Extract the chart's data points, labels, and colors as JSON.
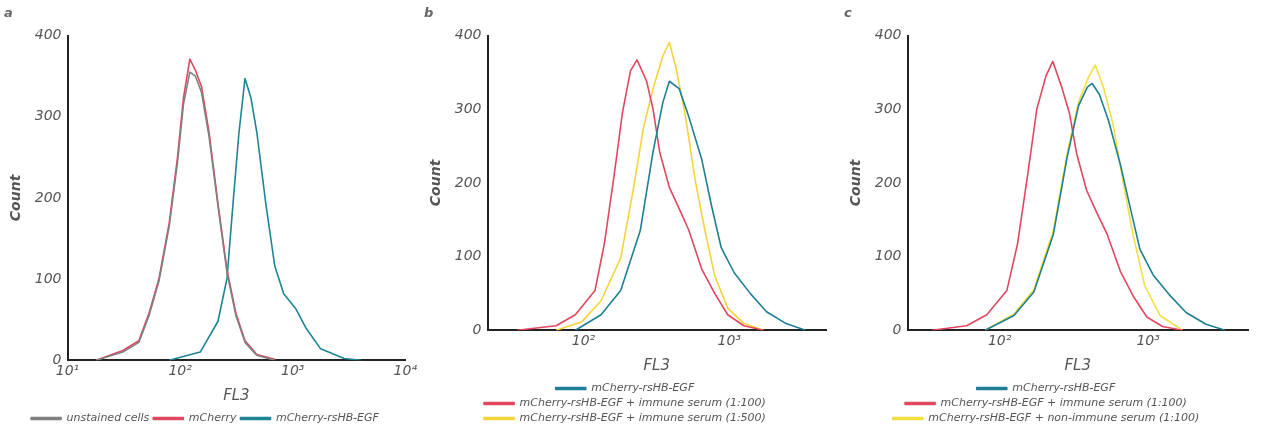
{
  "chart_data": [
    {
      "type": "line",
      "title": "a",
      "xlabel": "FL3",
      "ylabel": "Count",
      "log": "x",
      "xlim": [
        10,
        10000
      ],
      "xticks": [
        {
          "value": 10,
          "label": "10¹"
        },
        {
          "value": 100,
          "label": "10²"
        },
        {
          "value": 1000,
          "label": "10³"
        },
        {
          "value": 10000,
          "label": "10⁴"
        }
      ],
      "ylim": [
        0,
        400
      ],
      "yticks": [
        0,
        100,
        200,
        300,
        400
      ],
      "grid": false,
      "legend": "bottom",
      "marker": "none",
      "series": [
        {
          "name": "unstained cells",
          "color": "#808080",
          "x": [
            18,
            31,
            43,
            53,
            65,
            80,
            95,
            107,
            122,
            137,
            155,
            181,
            217,
            261,
            313,
            377,
            480,
            693
          ],
          "values": [
            0,
            10,
            22,
            55,
            98,
            165,
            245,
            315,
            355,
            350,
            330,
            275,
            190,
            108,
            55,
            22,
            6,
            0
          ]
        },
        {
          "name": "mCherry",
          "color": "#e0485f",
          "x": [
            18,
            31,
            43,
            53,
            65,
            80,
            95,
            107,
            122,
            137,
            155,
            181,
            217,
            261,
            313,
            377,
            480,
            693
          ],
          "values": [
            0,
            12,
            24,
            58,
            101,
            169,
            251,
            323,
            371,
            357,
            337,
            280,
            193,
            111,
            58,
            24,
            7,
            1
          ]
        },
        {
          "name": "mCherry-rsHB-EGF",
          "color": "#1e8595",
          "x": [
            80,
            151,
            217,
            261,
            295,
            333,
            377,
            426,
            481,
            577,
            693,
            832,
            1070,
            1320,
            1770,
            2870,
            4060
          ],
          "values": [
            0,
            10,
            48,
            101,
            193,
            280,
            347,
            323,
            280,
            193,
            116,
            82,
            63,
            39,
            14,
            2,
            0
          ]
        }
      ]
    },
    {
      "type": "line",
      "title": "b",
      "xlabel": "FL3",
      "ylabel": "Count",
      "log": "x",
      "xlim": [
        22,
        4600
      ],
      "xticks": [
        {
          "value": 100,
          "label": "10²"
        },
        {
          "value": 1000,
          "label": "10³"
        }
      ],
      "ylim": [
        0,
        400
      ],
      "yticks": [
        0,
        100,
        200,
        300,
        400
      ],
      "grid": false,
      "legend": "bottom",
      "marker": "none",
      "series": [
        {
          "name": "mCherry-rsHB-EGF",
          "color": "#1e7f95",
          "x": [
            88,
            132,
            180,
            245,
            300,
            350,
            388,
            453,
            527,
            647,
            755,
            880,
            1080,
            1390,
            1800,
            2450,
            3330
          ],
          "values": [
            0,
            21,
            54,
            135,
            242,
            309,
            338,
            328,
            290,
            232,
            169,
            112,
            78,
            50,
            25,
            9,
            0
          ]
        },
        {
          "name": "mCherry-rsHB-EGF + immune serum (1:100)",
          "color": "#e0485f",
          "x": [
            35,
            65,
            88,
            120,
            139,
            163,
            185,
            210,
            233,
            271,
            300,
            333,
            388,
            453,
            527,
            647,
            794,
            975,
            1260,
            1710
          ],
          "values": [
            0,
            6,
            21,
            54,
            117,
            213,
            295,
            352,
            367,
            338,
            300,
            242,
            194,
            165,
            136,
            83,
            50,
            21,
            6,
            0
          ]
        },
        {
          "name": "mCherry-rsHB-EGF + immune serum (1:500)",
          "color": "#f5d33a",
          "x": [
            65,
            97,
            132,
            180,
            221,
            258,
            300,
            350,
            388,
            430,
            501,
            584,
            681,
            794,
            975,
            1260,
            1710
          ],
          "values": [
            0,
            11,
            40,
            98,
            194,
            275,
            328,
            372,
            391,
            357,
            290,
            203,
            135,
            74,
            30,
            9,
            0
          ]
        }
      ]
    },
    {
      "type": "line",
      "title": "c",
      "xlabel": "FL3",
      "ylabel": "Count",
      "log": "x",
      "xlim": [
        24,
        4700
      ],
      "xticks": [
        {
          "value": 100,
          "label": "10²"
        },
        {
          "value": 1000,
          "label": "10³"
        }
      ],
      "ylim": [
        0,
        400
      ],
      "yticks": [
        0,
        100,
        200,
        300,
        400
      ],
      "grid": false,
      "legend": "bottom",
      "marker": "none",
      "series": [
        {
          "name": "mCherry-rsHB-EGF",
          "color": "#1e7f95",
          "x": [
            80,
            125,
            170,
            230,
            285,
            340,
            390,
            420,
            470,
            540,
            650,
            760,
            880,
            1080,
            1390,
            1800,
            2450,
            3300
          ],
          "values": [
            0,
            20,
            52,
            130,
            235,
            305,
            330,
            335,
            320,
            285,
            225,
            165,
            110,
            75,
            48,
            24,
            8,
            0
          ]
        },
        {
          "name": "mCherry-rsHB-EGF + immune serum (1:100)",
          "color": "#e0485f",
          "x": [
            35,
            60,
            82,
            112,
            132,
            155,
            178,
            205,
            228,
            262,
            295,
            330,
            385,
            450,
            530,
            650,
            800,
            980,
            1250,
            1700
          ],
          "values": [
            0,
            6,
            21,
            54,
            117,
            213,
            300,
            345,
            365,
            330,
            295,
            240,
            190,
            160,
            130,
            80,
            45,
            18,
            5,
            0
          ]
        },
        {
          "name": "mCherry-rsHB-EGF + non-immune serum (1:100)",
          "color": "#f2e040",
          "x": [
            80,
            125,
            170,
            230,
            285,
            340,
            400,
            440,
            500,
            580,
            680,
            790,
            950,
            1200,
            1700
          ],
          "values": [
            0,
            22,
            55,
            135,
            240,
            310,
            345,
            360,
            330,
            280,
            200,
            130,
            60,
            20,
            0
          ]
        }
      ]
    }
  ]
}
